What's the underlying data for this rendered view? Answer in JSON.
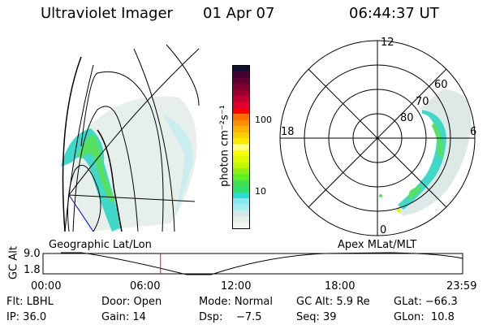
{
  "header": {
    "instrument": "Ultraviolet Imager",
    "date": "01 Apr 07",
    "time": "06:44:37 UT"
  },
  "colorbar": {
    "unit_label": "photon cm⁻²s⁻¹",
    "tick_labels": [
      "100",
      "10"
    ],
    "colors": [
      "#f0f6f0",
      "#e4f0ea",
      "#d2e6e6",
      "#a8eef0",
      "#88e8f0",
      "#28dcd0",
      "#30e070",
      "#40e050",
      "#60f020",
      "#90f010",
      "#c0f800",
      "#e0f800",
      "#f8ff00",
      "#ffff80",
      "#ffe800",
      "#ffd000",
      "#ffb000",
      "#ff9000",
      "#ff7000",
      "#ff0000",
      "#e00030",
      "#c00030",
      "#a00030",
      "#800030",
      "#600030",
      "#400030",
      "#101030"
    ]
  },
  "polar": {
    "ring_labels": [
      "80",
      "70",
      "60"
    ],
    "mlt_labels": {
      "top": "12",
      "left": "18",
      "right": "6",
      "bottom": "0"
    }
  },
  "timeline": {
    "left_title": "Geographic Lat/Lon",
    "right_title": "Apex MLat/MLT",
    "y_label": "GC Alt",
    "y_ticks": [
      "9.0",
      "1.8"
    ],
    "x_ticks": [
      "00:00",
      "06:00",
      "12:00",
      "18:00",
      "23:59"
    ],
    "current_time_fraction": 0.28,
    "marker_color": "#ff0000"
  },
  "info": {
    "row1": [
      "Flt: LBHL",
      "Door: Open",
      "Mode: Normal",
      "GC Alt: 5.9 Re",
      "GLat: −66.3"
    ],
    "row2": [
      "IP: 36.0",
      "Gain: 14",
      "Dsp:    −7.5",
      "Seq: 39",
      "GLon:  10.8"
    ]
  }
}
